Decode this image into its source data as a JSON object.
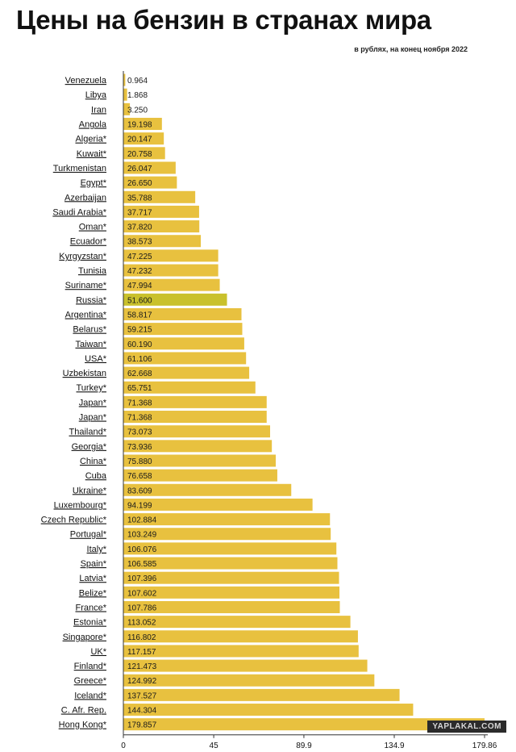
{
  "title": "Цены на бензин в странах мира",
  "subtitle": "в рублях, на конец ноября 2022",
  "watermark": "YAPLAKAL.COM",
  "colors": {
    "bar": "#e8c13f",
    "highlight": "#c9c12c",
    "axis": "#333333",
    "text": "#111111"
  },
  "chart_data": {
    "type": "bar",
    "orientation": "horizontal",
    "title": "Цены на бензин в странах мира",
    "subtitle": "в рублях, на конец ноября 2022",
    "categories": [
      "Venezuela",
      "Libya",
      "Iran",
      "Angola",
      "Algeria*",
      "Kuwait*",
      "Turkmenistan",
      "Egypt*",
      "Azerbaijan",
      "Saudi Arabia*",
      "Oman*",
      "Ecuador*",
      "Kyrgyzstan*",
      "Tunisia",
      "Suriname*",
      "Russia*",
      "Argentina*",
      "Belarus*",
      "Taiwan*",
      "USA*",
      "Uzbekistan",
      "Turkey*",
      "Japan*",
      "Japan*",
      "Thailand*",
      "Georgia*",
      "China*",
      "Cuba",
      "Ukraine*",
      "Luxembourg*",
      "Czech Republic*",
      "Portugal*",
      "Italy*",
      "Spain*",
      "Latvia*",
      "Belize*",
      "France*",
      "Estonia*",
      "Singapore*",
      "UK*",
      "Finland*",
      "Greece*",
      "Iceland*",
      "C. Afr. Rep.",
      "Hong Kong*"
    ],
    "value_labels": [
      "0.964",
      "1.868",
      "3.250",
      "19.198",
      "20.147",
      "20.758",
      "26.047",
      "26.650",
      "35.788",
      "37.717",
      "37.820",
      "38.573",
      "47.225",
      "47.232",
      "47.994",
      "51.600",
      "58.817",
      "59.215",
      "60.190",
      "61.106",
      "62.668",
      "65.751",
      "71.368",
      "71.368",
      "73.073",
      "73.936",
      "75.880",
      "76.658",
      "83.609",
      "94.199",
      "102.884",
      "103.249",
      "106.076",
      "106.585",
      "107.396",
      "107.602",
      "107.786",
      "113.052",
      "116.802",
      "117.157",
      "121.473",
      "124.992",
      "137.527",
      "144.304",
      "179.857"
    ],
    "values": [
      0.964,
      1.868,
      3.25,
      19.198,
      20.147,
      20.758,
      26.047,
      26.65,
      35.788,
      37.717,
      37.82,
      38.573,
      47.225,
      47.232,
      47.994,
      51.6,
      58.817,
      59.215,
      60.19,
      61.106,
      62.668,
      65.751,
      71.368,
      71.368,
      73.073,
      73.936,
      75.88,
      76.658,
      83.609,
      94.199,
      102.884,
      103.249,
      106.076,
      106.585,
      107.396,
      107.602,
      107.786,
      113.052,
      116.802,
      117.157,
      121.473,
      124.992,
      137.527,
      144.304,
      179.857
    ],
    "highlight_category": "Russia*",
    "xlim": [
      0,
      179.86
    ],
    "xticks": [
      "0",
      "45",
      "89.9",
      "134.9",
      "179.86"
    ],
    "xtick_values": [
      0,
      45,
      89.9,
      134.9,
      179.86
    ],
    "grid": false,
    "legend": "none"
  }
}
